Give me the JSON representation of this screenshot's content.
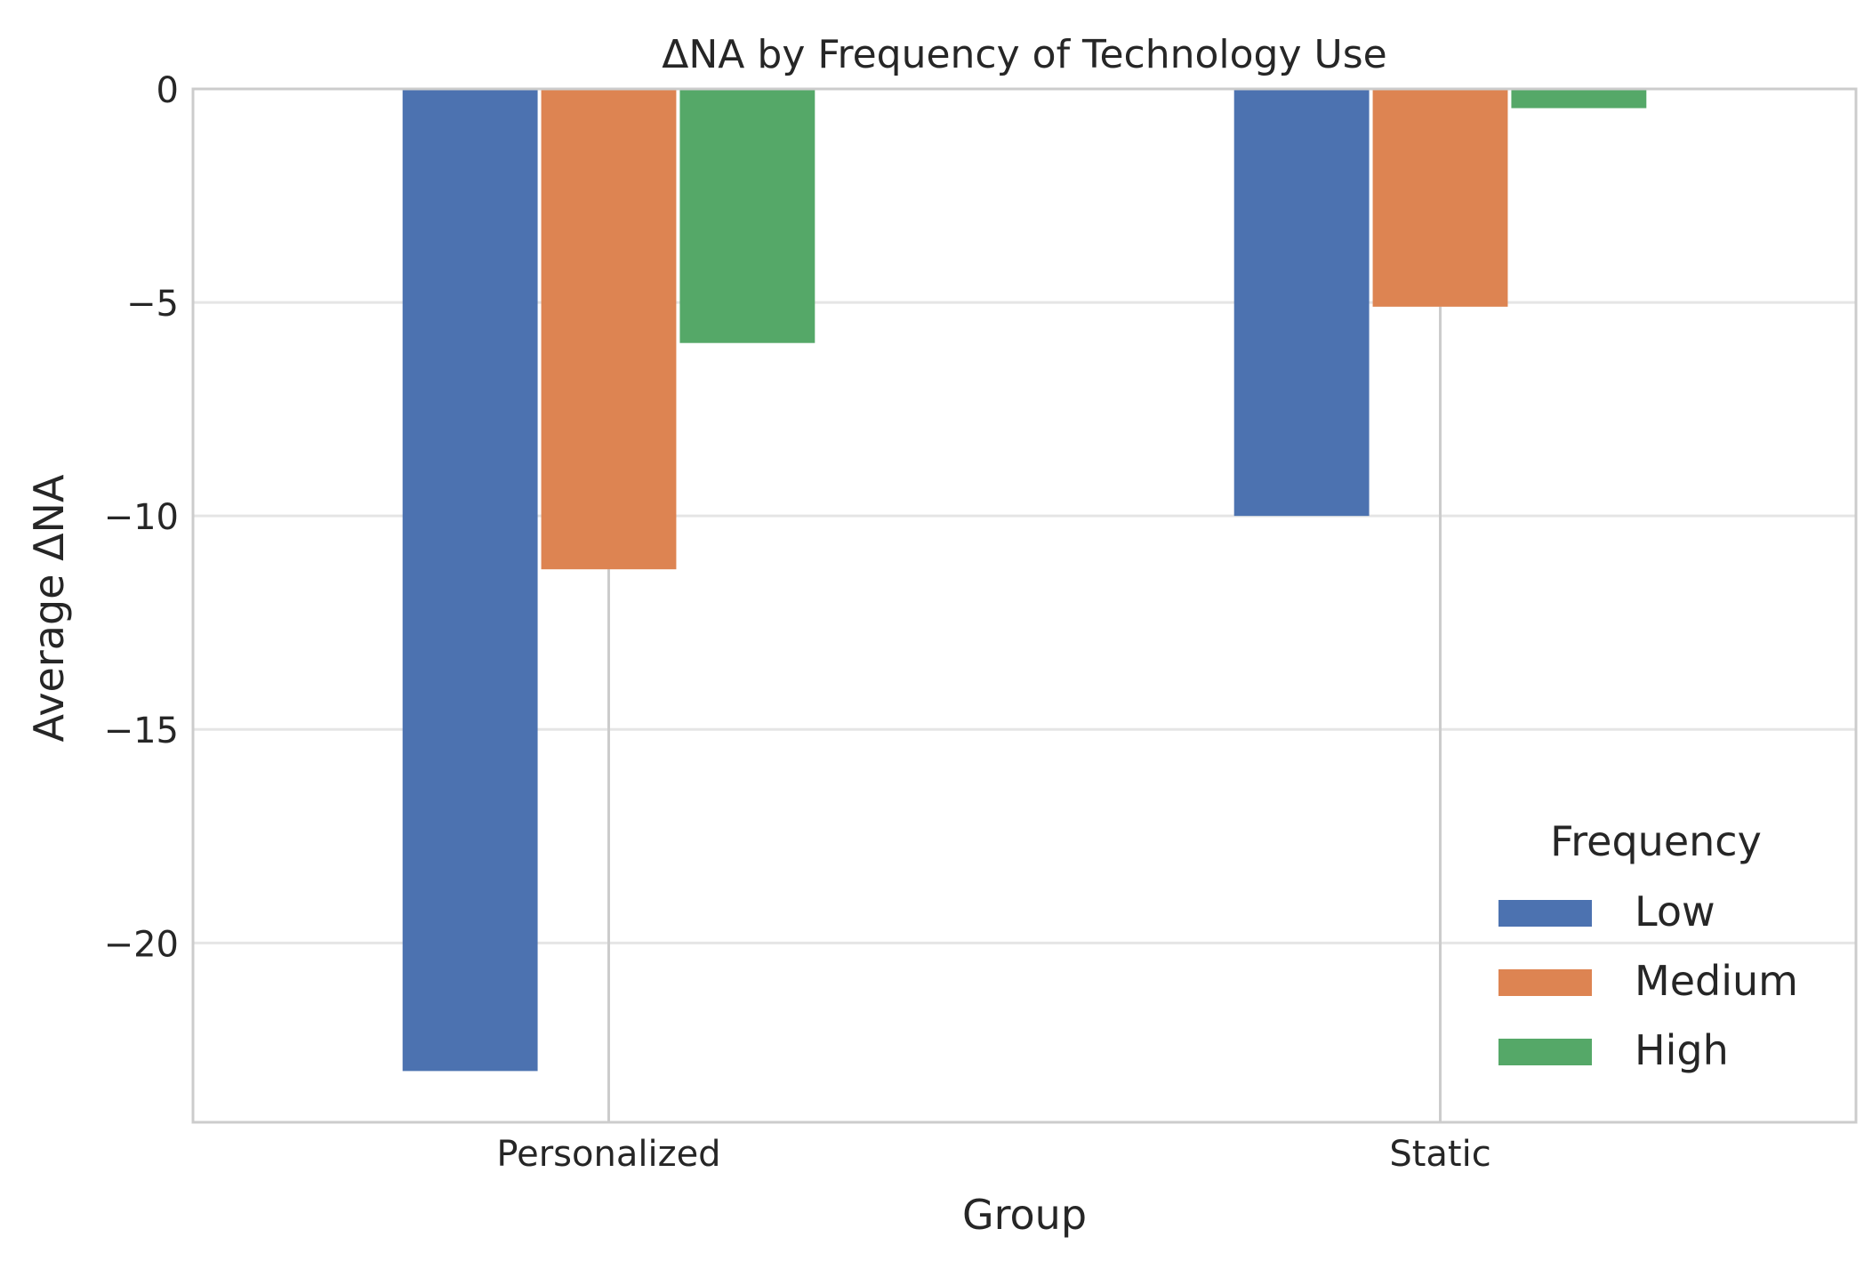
{
  "chart_data": {
    "type": "bar",
    "title": "ΔNA by Frequency of Technology Use",
    "xlabel": "Group",
    "ylabel": "Average ΔNA",
    "categories": [
      "Personalized",
      "Static"
    ],
    "series": [
      {
        "name": "Low",
        "values": [
          -23.0,
          -10.0
        ],
        "color": "#4c72b0"
      },
      {
        "name": "Medium",
        "values": [
          -11.25,
          -5.1
        ],
        "color": "#dd8452"
      },
      {
        "name": "High",
        "values": [
          -5.95,
          -0.45
        ],
        "color": "#55a868"
      }
    ],
    "ylim": [
      -24.2,
      0
    ],
    "yticks": [
      0,
      -5,
      -10,
      -15,
      -20
    ],
    "ytick_labels": [
      "0",
      "−5",
      "−10",
      "−15",
      "−20"
    ],
    "grid": true,
    "legend": {
      "title": "Frequency",
      "placement": "lower-right"
    }
  }
}
